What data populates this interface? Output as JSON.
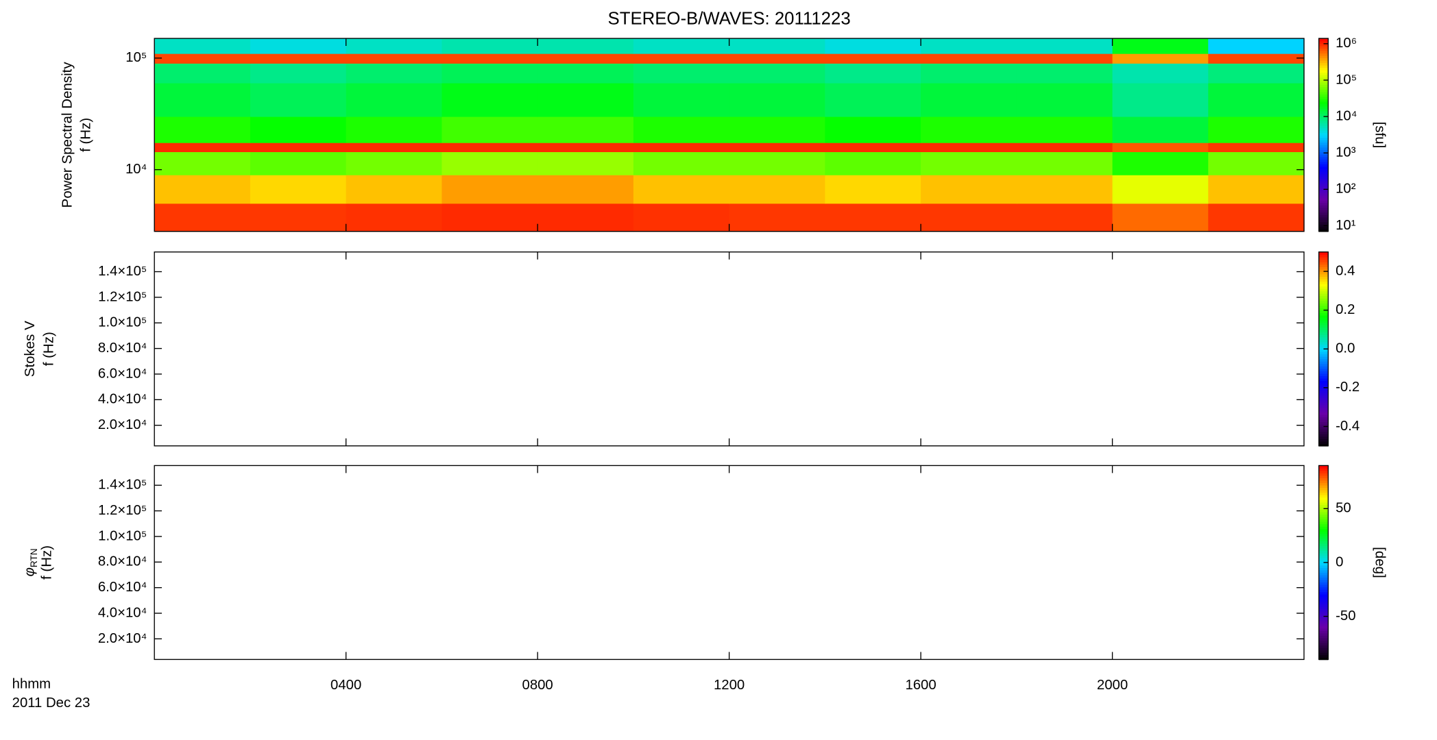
{
  "chart_data": [
    {
      "type": "heatmap",
      "title": "STEREO-B/WAVES: 20111223",
      "ylabel": [
        "Power Spectral Density",
        "f (Hz)"
      ],
      "xlim": [
        0,
        24
      ],
      "xticks": [
        4,
        8,
        12,
        16,
        20
      ],
      "ylog": true,
      "ylim": [
        2800,
        150000
      ],
      "yticks": [
        {
          "value": 10000,
          "label": "10⁴"
        },
        {
          "value": 100000,
          "label": "10⁵"
        }
      ],
      "x_edges": [
        0,
        2,
        4,
        6,
        8,
        10,
        12,
        14,
        16,
        18,
        20,
        22,
        24
      ],
      "y_edges": [
        2800,
        5000,
        9000,
        14500,
        17500,
        30000,
        60000,
        90000,
        110000,
        150000
      ],
      "z": [
        [
          900000,
          900000,
          950000,
          1000000,
          1000000,
          950000,
          900000,
          900000,
          900000,
          900000,
          600000,
          900000
        ],
        [
          300000,
          250000,
          300000,
          400000,
          400000,
          300000,
          300000,
          250000,
          300000,
          300000,
          150000,
          300000
        ],
        [
          60000,
          50000,
          60000,
          80000,
          80000,
          60000,
          60000,
          50000,
          60000,
          60000,
          30000,
          60000
        ],
        [
          1000000,
          1000000,
          1000000,
          1000000,
          1000000,
          1000000,
          1000000,
          1000000,
          1000000,
          1000000,
          700000,
          900000
        ],
        [
          30000,
          25000,
          30000,
          40000,
          40000,
          30000,
          30000,
          25000,
          30000,
          30000,
          15000,
          30000
        ],
        [
          15000,
          12000,
          15000,
          20000,
          20000,
          15000,
          15000,
          12000,
          15000,
          15000,
          8000,
          15000
        ],
        [
          10000,
          8000,
          10000,
          12000,
          12000,
          10000,
          10000,
          8000,
          10000,
          10000,
          6000,
          9000
        ],
        [
          800000,
          800000,
          800000,
          800000,
          800000,
          800000,
          800000,
          800000,
          800000,
          800000,
          400000,
          800000
        ],
        [
          5000,
          4000,
          5000,
          6000,
          6000,
          5000,
          5000,
          4000,
          5000,
          5000,
          20000,
          3000
        ]
      ],
      "zlog": true,
      "zlim": [
        7,
        1400000
      ],
      "zlabel": "[sfu]",
      "zticks": [
        {
          "value": 10,
          "label": "10¹"
        },
        {
          "value": 100,
          "label": "10²"
        },
        {
          "value": 1000,
          "label": "10³"
        },
        {
          "value": 10000,
          "label": "10⁴"
        },
        {
          "value": 100000,
          "label": "10⁵"
        },
        {
          "value": 1000000,
          "label": "10⁶"
        }
      ],
      "colormap": [
        "#000000",
        "#6a00a8",
        "#0000ff",
        "#00d8ff",
        "#00ff00",
        "#ffff00",
        "#ff0000"
      ]
    },
    {
      "type": "heatmap",
      "ylabel": [
        "Stokes V",
        "f (Hz)"
      ],
      "xlim": [
        0,
        24
      ],
      "xticks": [
        4,
        8,
        12,
        16,
        20
      ],
      "ylim": [
        3900,
        155400
      ],
      "yticks": [
        {
          "value": 20000,
          "label": "2.0×10⁴"
        },
        {
          "value": 40000,
          "label": "4.0×10⁴"
        },
        {
          "value": 60000,
          "label": "6.0×10⁴"
        },
        {
          "value": 80000,
          "label": "8.0×10⁴"
        },
        {
          "value": 100000,
          "label": "1.0×10⁵"
        },
        {
          "value": 120000,
          "label": "1.2×10⁵"
        },
        {
          "value": 140000,
          "label": "1.4×10⁵"
        }
      ],
      "zlim": [
        -0.5,
        0.5
      ],
      "zticks": [
        -0.4,
        -0.2,
        {
          "value": 0,
          "label": "0.0"
        },
        0.2,
        0.4
      ],
      "colormap": [
        "#000000",
        "#6a00a8",
        "#0000ff",
        "#00d8ff",
        "#00ff00",
        "#ffff00",
        "#ff0000"
      ]
    },
    {
      "type": "heatmap",
      "ylabel_symbol": "φ",
      "ylabel_subscript": "RTN",
      "ylabel": [
        "f (Hz)"
      ],
      "xlim": [
        0,
        24
      ],
      "xticks": [
        {
          "value": 4,
          "label": "0400"
        },
        {
          "value": 8,
          "label": "0800"
        },
        {
          "value": 12,
          "label": "1200"
        },
        {
          "value": 16,
          "label": "1600"
        },
        {
          "value": 20,
          "label": "2000"
        }
      ],
      "xlabel": "hhmm",
      "date": "2011 Dec 23",
      "ylim": [
        3900,
        155400
      ],
      "yticks": [
        {
          "value": 20000,
          "label": "2.0×10⁴"
        },
        {
          "value": 40000,
          "label": "4.0×10⁴"
        },
        {
          "value": 60000,
          "label": "6.0×10⁴"
        },
        {
          "value": 80000,
          "label": "8.0×10⁴"
        },
        {
          "value": 100000,
          "label": "1.0×10⁵"
        },
        {
          "value": 120000,
          "label": "1.2×10⁵"
        },
        {
          "value": 140000,
          "label": "1.4×10⁵"
        }
      ],
      "zlim": [
        -90,
        90
      ],
      "zlabel": "[deg]",
      "zticks": [
        -50,
        0,
        50
      ],
      "colormap": [
        "#000000",
        "#6a00a8",
        "#0000ff",
        "#00d8ff",
        "#00ff00",
        "#ffff00",
        "#ff0000"
      ]
    }
  ]
}
